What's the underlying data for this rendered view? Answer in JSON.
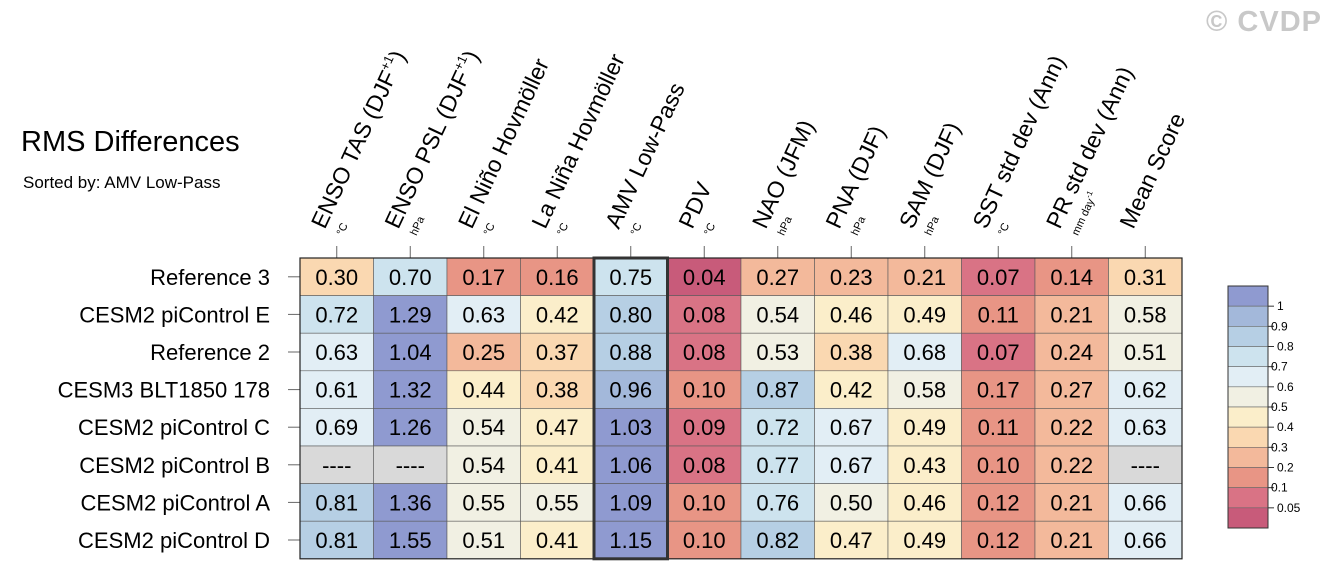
{
  "watermark": "© CVDP",
  "chart_data": {
    "type": "heatmap",
    "title": "RMS Differences",
    "subtitle": "Sorted by: AMV Low-Pass",
    "columns": [
      {
        "label": "ENSO TAS (DJF",
        "sup": "+1",
        "close": ")",
        "unit": "°C"
      },
      {
        "label": "ENSO PSL (DJF",
        "sup": "+1",
        "close": ")",
        "unit": "hPa"
      },
      {
        "label": "El Niño Hovmöller",
        "unit": "°C"
      },
      {
        "label": "La Niña Hovmöller",
        "unit": "°C"
      },
      {
        "label": "AMV Low-Pass",
        "unit": "°C"
      },
      {
        "label": "PDV",
        "unit": "°C"
      },
      {
        "label": "NAO (JFM)",
        "unit": "hPa"
      },
      {
        "label": "PNA (DJF)",
        "unit": "hPa"
      },
      {
        "label": "SAM (DJF)",
        "unit": "hPa"
      },
      {
        "label": "SST std dev (Ann)",
        "unit": "°C"
      },
      {
        "label": "PR std dev (Ann)",
        "unit": "mm day",
        "unit_sup": "-1"
      },
      {
        "label": "Mean Score",
        "unit": ""
      }
    ],
    "rows": [
      {
        "name": "Reference 3",
        "values": [
          0.3,
          0.7,
          0.17,
          0.16,
          0.75,
          0.04,
          0.27,
          0.23,
          0.21,
          0.07,
          0.14,
          0.31
        ]
      },
      {
        "name": "CESM2 piControl E",
        "values": [
          0.72,
          1.29,
          0.63,
          0.42,
          0.8,
          0.08,
          0.54,
          0.46,
          0.49,
          0.11,
          0.21,
          0.58
        ]
      },
      {
        "name": "Reference 2",
        "values": [
          0.63,
          1.04,
          0.25,
          0.37,
          0.88,
          0.08,
          0.53,
          0.38,
          0.68,
          0.07,
          0.24,
          0.51
        ]
      },
      {
        "name": "CESM3 BLT1850 178",
        "values": [
          0.61,
          1.32,
          0.44,
          0.38,
          0.96,
          0.1,
          0.87,
          0.42,
          0.58,
          0.17,
          0.27,
          0.62
        ]
      },
      {
        "name": "CESM2 piControl C",
        "values": [
          0.69,
          1.26,
          0.54,
          0.47,
          1.03,
          0.09,
          0.72,
          0.67,
          0.49,
          0.11,
          0.22,
          0.63
        ]
      },
      {
        "name": "CESM2 piControl B",
        "values": [
          null,
          null,
          0.54,
          0.41,
          1.06,
          0.08,
          0.77,
          0.67,
          0.43,
          0.1,
          0.22,
          null
        ]
      },
      {
        "name": "CESM2 piControl A",
        "values": [
          0.81,
          1.36,
          0.55,
          0.55,
          1.09,
          0.1,
          0.76,
          0.5,
          0.46,
          0.12,
          0.21,
          0.66
        ]
      },
      {
        "name": "CESM2 piControl D",
        "values": [
          0.81,
          1.55,
          0.51,
          0.41,
          1.15,
          0.1,
          0.82,
          0.47,
          0.49,
          0.12,
          0.21,
          0.66
        ]
      }
    ],
    "missing_label": "----",
    "highlight_column": "AMV Low-Pass",
    "colorbar": {
      "labels": [
        "1",
        "0.9",
        "0.8",
        "0.7",
        "0.6",
        "0.5",
        "0.4",
        "0.3",
        "0.2",
        "0.1",
        "0.05"
      ],
      "colors": [
        "#8f9ad0",
        "#a3b8da",
        "#b6cfe4",
        "#cde3ee",
        "#e2eef5",
        "#f1f0e3",
        "#fbeeca",
        "#fad8b1",
        "#f3b99b",
        "#e89585",
        "#d97385",
        "#c85b7a"
      ],
      "bounds": [
        1,
        0.9,
        0.8,
        0.7,
        0.6,
        0.5,
        0.4,
        0.3,
        0.2,
        0.1,
        0.05
      ]
    },
    "missing_color": "#d9d9d9"
  }
}
